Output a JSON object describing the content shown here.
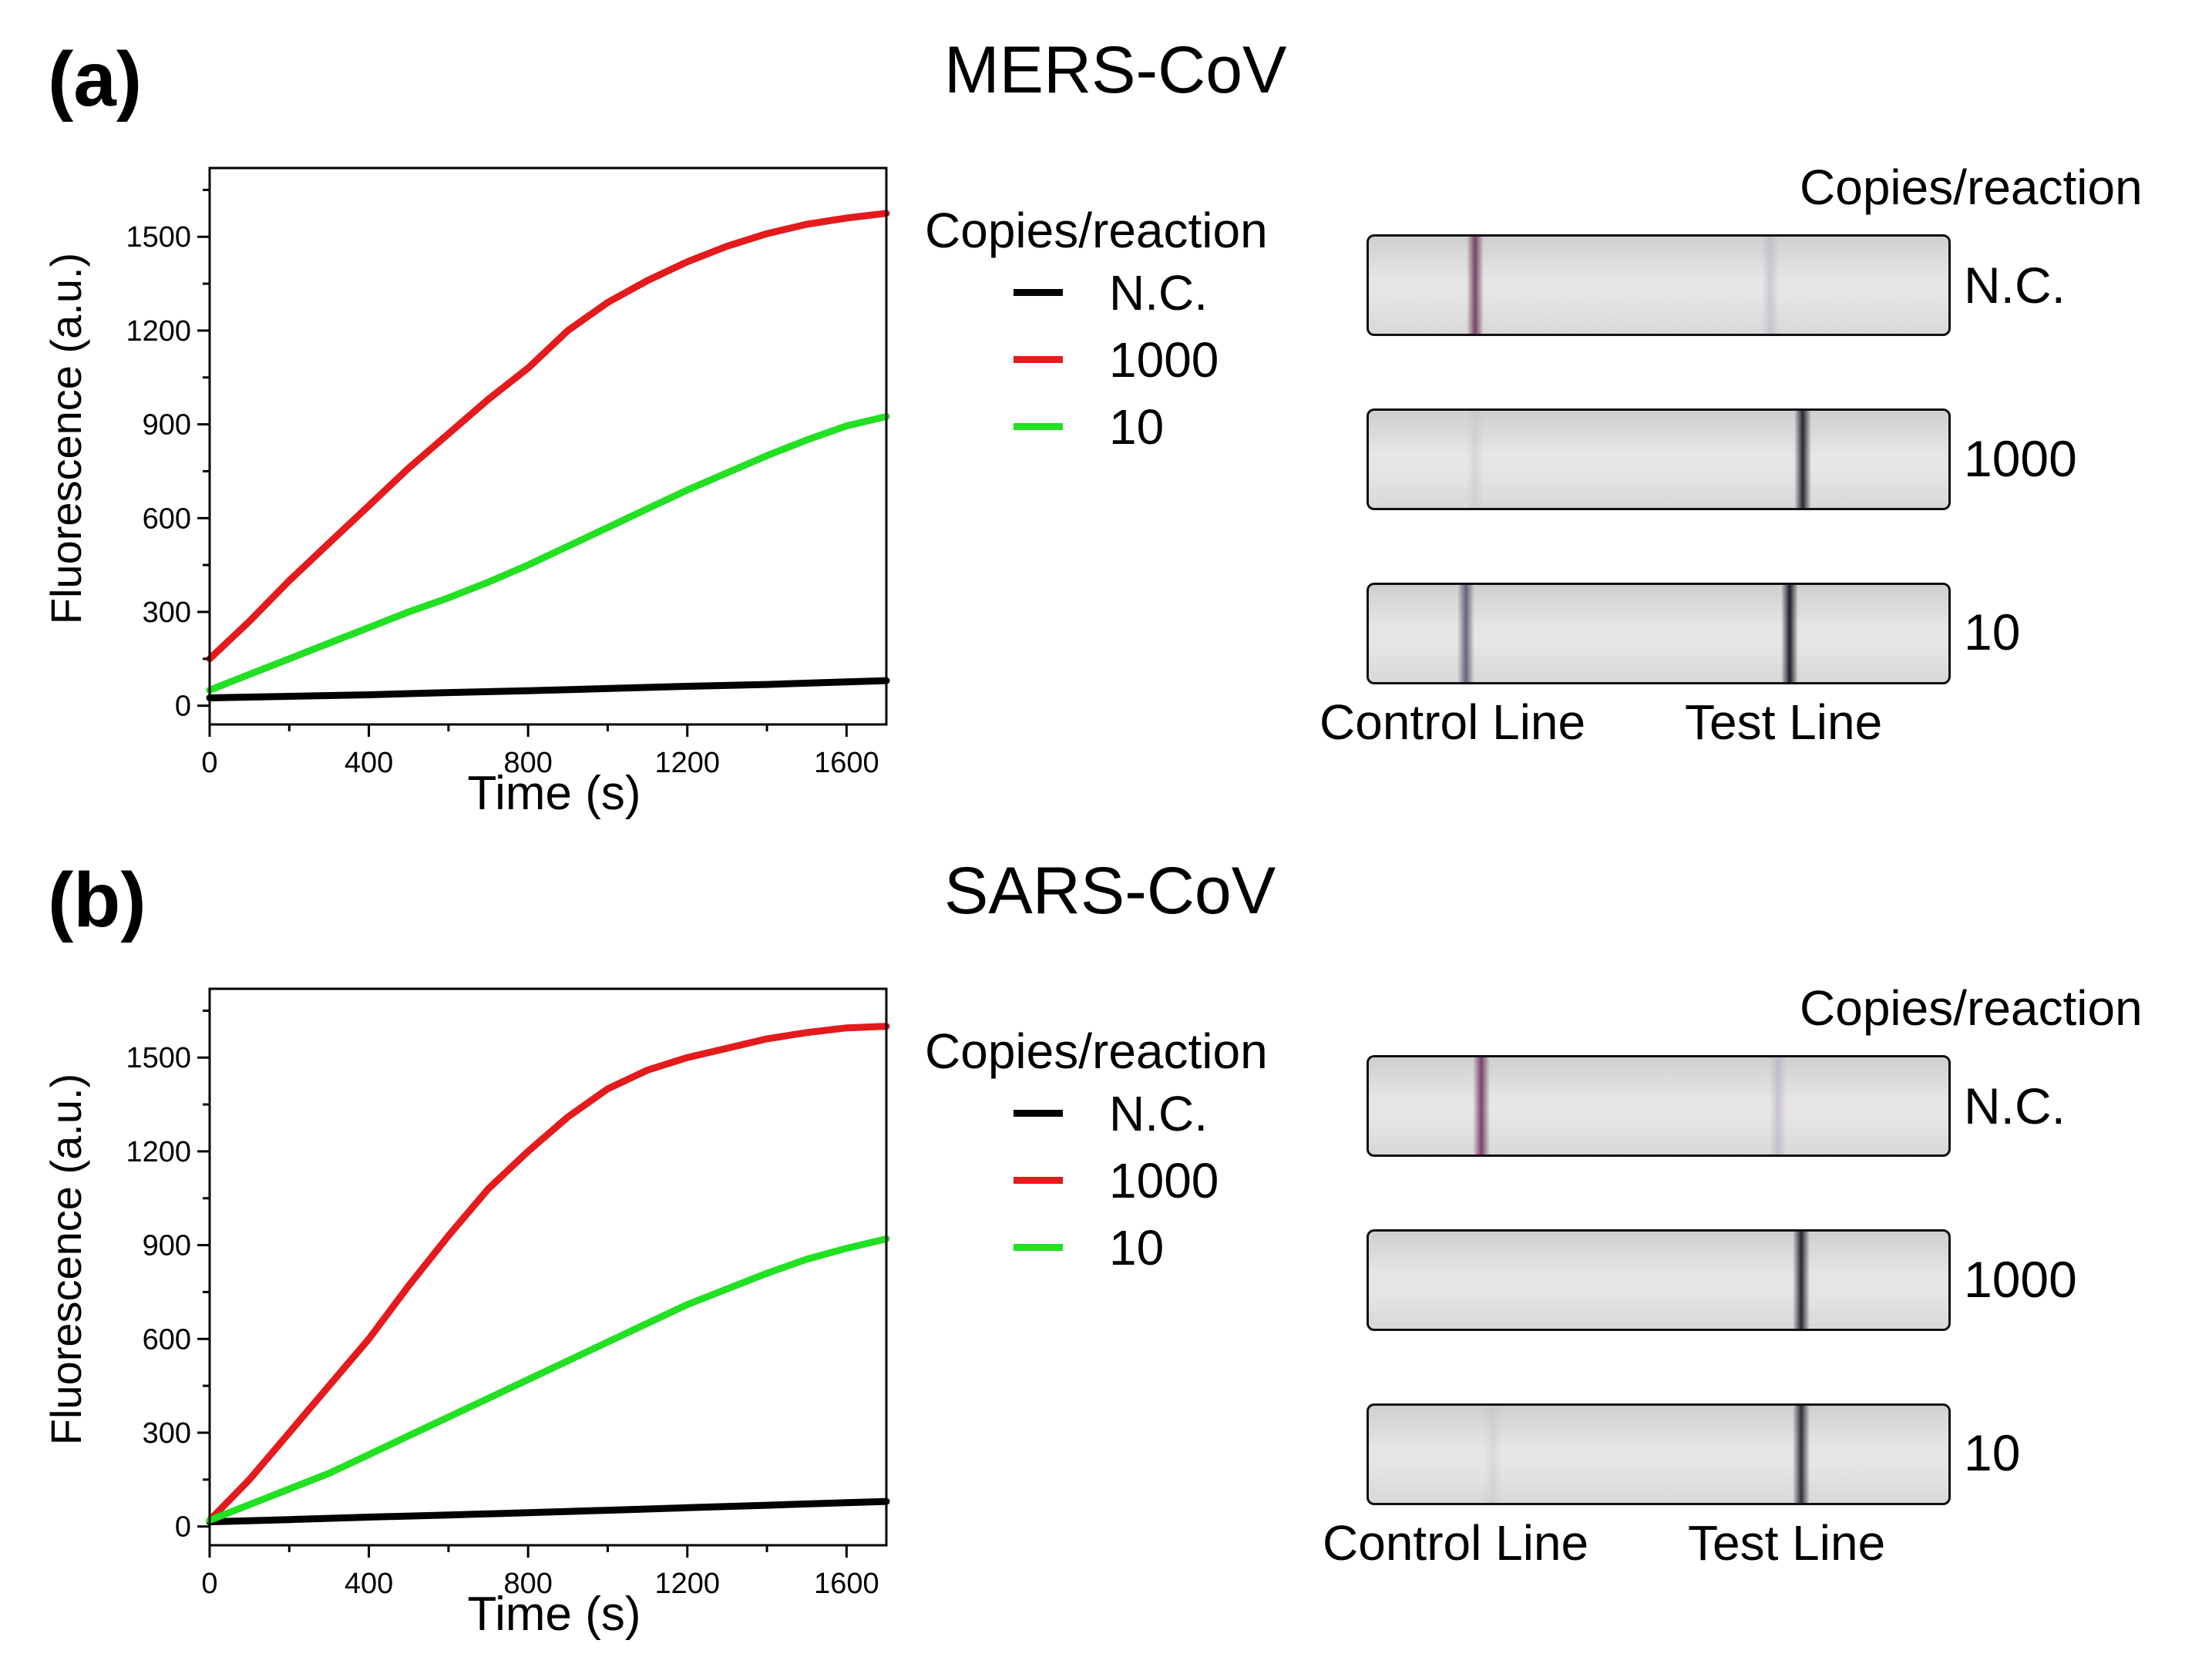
{
  "colors": {
    "nc": "#000000",
    "c1000": "#e41a1c",
    "c10": "#22e022"
  },
  "chart_data": [
    {
      "type": "line",
      "panel_label": "(a)",
      "title": "MERS-CoV",
      "xlabel": "Time (s)",
      "ylabel": "Fluorescence (a.u.)",
      "xlim": [
        0,
        1700
      ],
      "ylim": [
        -60,
        1720
      ],
      "xticks": [
        0,
        400,
        800,
        1200,
        1600
      ],
      "yticks": [
        0,
        300,
        600,
        900,
        1200,
        1500
      ],
      "legend_title": "Copies/reaction",
      "series": [
        {
          "name": "N.C.",
          "color": "#000000",
          "x": [
            0,
            200,
            400,
            600,
            800,
            1000,
            1200,
            1400,
            1600,
            1700
          ],
          "y": [
            25,
            30,
            35,
            42,
            48,
            55,
            62,
            68,
            76,
            80
          ]
        },
        {
          "name": "1000",
          "color": "#e41a1c",
          "x": [
            0,
            100,
            200,
            300,
            400,
            500,
            600,
            700,
            800,
            900,
            1000,
            1100,
            1200,
            1300,
            1400,
            1500,
            1600,
            1700
          ],
          "y": [
            150,
            270,
            400,
            520,
            640,
            760,
            870,
            980,
            1080,
            1200,
            1290,
            1360,
            1420,
            1470,
            1510,
            1540,
            1560,
            1575
          ]
        },
        {
          "name": "10",
          "color": "#22e022",
          "x": [
            0,
            100,
            200,
            300,
            400,
            500,
            600,
            700,
            800,
            900,
            1000,
            1100,
            1200,
            1300,
            1400,
            1500,
            1600,
            1700
          ],
          "y": [
            50,
            100,
            150,
            200,
            250,
            300,
            345,
            395,
            450,
            510,
            570,
            630,
            690,
            745,
            800,
            850,
            895,
            925
          ]
        }
      ]
    },
    {
      "type": "line",
      "panel_label": "(b)",
      "title": "SARS-CoV",
      "xlabel": "Time (s)",
      "ylabel": "Fluorescence (a.u.)",
      "xlim": [
        0,
        1700
      ],
      "ylim": [
        -60,
        1720
      ],
      "xticks": [
        0,
        400,
        800,
        1200,
        1600
      ],
      "yticks": [
        0,
        300,
        600,
        900,
        1200,
        1500
      ],
      "legend_title": "Copies/reaction",
      "series": [
        {
          "name": "N.C.",
          "color": "#000000",
          "x": [
            0,
            200,
            400,
            600,
            800,
            1000,
            1200,
            1400,
            1600,
            1700
          ],
          "y": [
            15,
            22,
            30,
            37,
            44,
            52,
            60,
            68,
            76,
            80
          ]
        },
        {
          "name": "1000",
          "color": "#e41a1c",
          "x": [
            0,
            100,
            200,
            300,
            400,
            500,
            600,
            700,
            800,
            900,
            1000,
            1100,
            1200,
            1300,
            1400,
            1500,
            1600,
            1700
          ],
          "y": [
            20,
            150,
            300,
            450,
            600,
            770,
            930,
            1080,
            1200,
            1310,
            1400,
            1460,
            1500,
            1530,
            1560,
            1580,
            1595,
            1600
          ]
        },
        {
          "name": "10",
          "color": "#22e022",
          "x": [
            0,
            100,
            200,
            300,
            400,
            500,
            600,
            700,
            800,
            900,
            1000,
            1100,
            1200,
            1300,
            1400,
            1500,
            1600,
            1700
          ],
          "y": [
            20,
            70,
            120,
            170,
            230,
            290,
            350,
            410,
            470,
            530,
            590,
            650,
            710,
            760,
            810,
            855,
            890,
            920
          ]
        }
      ]
    }
  ],
  "strips_a": {
    "header": "Copies/reaction",
    "rows": [
      "N.C.",
      "1000",
      "10"
    ],
    "control_label": "Control Line",
    "test_label": "Test Line"
  },
  "strips_b": {
    "header": "Copies/reaction",
    "rows": [
      "N.C.",
      "1000",
      "10"
    ],
    "control_label": "Control Line",
    "test_label": "Test Line"
  }
}
